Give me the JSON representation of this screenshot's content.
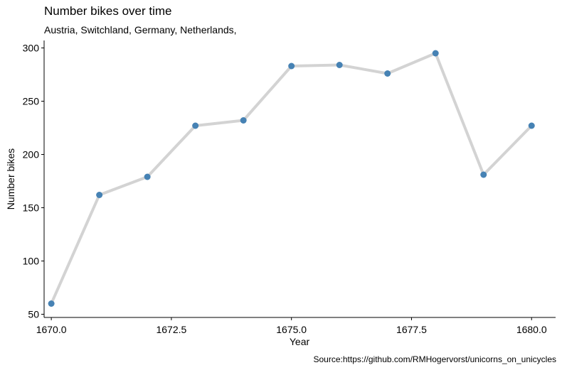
{
  "chart_data": {
    "type": "line",
    "title": "Number bikes over time",
    "subtitle": "Austria, Switchland, Germany, Netherlands,",
    "caption": "Source:https://github.com/RMHogervorst/unicorns_on_unicycles",
    "xlabel": "Year",
    "ylabel": "Number bikes",
    "x": [
      1670,
      1671,
      1672,
      1673,
      1674,
      1675,
      1676,
      1677,
      1678,
      1679,
      1680
    ],
    "series": [
      {
        "values": [
          60,
          162,
          179,
          227,
          232,
          283,
          284,
          276,
          295,
          181,
          227
        ]
      }
    ],
    "xlim": [
      1669.85,
      1680.5
    ],
    "ylim": [
      47,
      307
    ],
    "xticks": [
      1670.0,
      1672.5,
      1675.0,
      1677.5,
      1680.0
    ],
    "xtick_labels": [
      "1670.0",
      "1672.5",
      "1675.0",
      "1677.5",
      "1680.0"
    ],
    "yticks": [
      50,
      100,
      150,
      200,
      250,
      300
    ],
    "ytick_labels": [
      "50",
      "100",
      "150",
      "200",
      "250",
      "300"
    ],
    "grid": false,
    "line_color": "#d3d3d3",
    "point_color": "#4682b4"
  }
}
